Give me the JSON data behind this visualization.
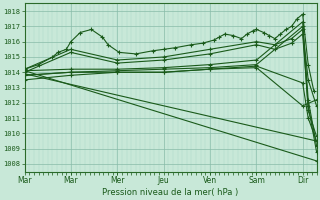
{
  "title": "Pression niveau de la mer( hPa )",
  "ylabel_values": [
    1008,
    1009,
    1010,
    1011,
    1012,
    1013,
    1014,
    1015,
    1016,
    1017,
    1018
  ],
  "ylim": [
    1007.5,
    1018.5
  ],
  "xlim": [
    0,
    5.25
  ],
  "xtick_positions": [
    0.0,
    0.83,
    1.67,
    2.5,
    3.33,
    4.17,
    5.0
  ],
  "xtick_labels": [
    "Mar",
    "Mar",
    "Mer",
    "Jeu",
    "Ven",
    "Sam",
    "Dir"
  ],
  "bg_color": "#c8e8d8",
  "grid_color_minor": "#a8d8c8",
  "grid_color_major": "#88bba8",
  "line_color": "#1a5a1a",
  "marker": "+",
  "lines": [
    {
      "x": [
        0.0,
        0.25,
        0.5,
        0.6,
        0.75,
        0.83,
        1.0,
        1.2,
        1.4,
        1.5,
        1.7,
        2.0,
        2.3,
        2.5,
        2.7,
        3.0,
        3.2,
        3.4,
        3.5,
        3.6,
        3.75,
        3.9,
        4.0,
        4.1,
        4.17,
        4.3,
        4.4,
        4.5,
        4.6,
        4.7,
        4.8,
        4.9,
        5.0,
        5.1,
        5.2
      ],
      "y": [
        1014.2,
        1014.5,
        1015.0,
        1015.3,
        1015.5,
        1016.0,
        1016.6,
        1016.8,
        1016.3,
        1015.8,
        1015.3,
        1015.2,
        1015.4,
        1015.5,
        1015.6,
        1015.8,
        1015.9,
        1016.1,
        1016.3,
        1016.5,
        1016.4,
        1016.2,
        1016.5,
        1016.7,
        1016.8,
        1016.6,
        1016.4,
        1016.2,
        1016.5,
        1016.8,
        1017.0,
        1017.5,
        1017.8,
        1014.5,
        1012.8
      ]
    },
    {
      "x": [
        0.0,
        0.83,
        1.67,
        2.5,
        3.33,
        4.17,
        4.5,
        4.8,
        5.0,
        5.1,
        5.25
      ],
      "y": [
        1014.2,
        1015.5,
        1014.8,
        1015.0,
        1015.5,
        1016.0,
        1015.8,
        1016.2,
        1016.8,
        1013.5,
        1011.8
      ]
    },
    {
      "x": [
        0.0,
        0.83,
        1.67,
        2.5,
        3.33,
        4.17,
        4.5,
        4.8,
        5.0,
        5.1,
        5.25
      ],
      "y": [
        1014.0,
        1015.3,
        1014.6,
        1014.8,
        1015.2,
        1015.8,
        1015.5,
        1015.9,
        1016.5,
        1011.8,
        1008.8
      ]
    },
    {
      "x": [
        0.0,
        0.83,
        1.67,
        2.5,
        3.33,
        4.17,
        5.0,
        5.1,
        5.25
      ],
      "y": [
        1014.1,
        1014.2,
        1014.2,
        1014.3,
        1014.5,
        1014.8,
        1017.3,
        1012.2,
        1009.2
      ]
    },
    {
      "x": [
        0.0,
        0.83,
        1.67,
        2.5,
        3.33,
        4.17,
        5.0,
        5.1,
        5.25
      ],
      "y": [
        1013.8,
        1014.0,
        1014.1,
        1014.2,
        1014.3,
        1014.5,
        1017.0,
        1011.5,
        1009.8
      ]
    },
    {
      "x": [
        0.0,
        0.83,
        1.67,
        2.5,
        3.33,
        4.17,
        5.0,
        5.1,
        5.25
      ],
      "y": [
        1013.5,
        1013.8,
        1014.0,
        1014.0,
        1014.2,
        1014.4,
        1013.3,
        1011.0,
        1009.5
      ]
    },
    {
      "x": [
        0.0,
        0.83,
        1.67,
        2.5,
        3.33,
        4.17,
        5.0,
        5.25
      ],
      "y": [
        1013.8,
        1014.0,
        1014.0,
        1014.0,
        1014.2,
        1014.3,
        1011.8,
        1012.2
      ]
    },
    {
      "x": [
        0.0,
        5.25
      ],
      "y": [
        1014.1,
        1008.2
      ]
    },
    {
      "x": [
        0.0,
        5.25
      ],
      "y": [
        1013.9,
        1009.5
      ]
    }
  ]
}
